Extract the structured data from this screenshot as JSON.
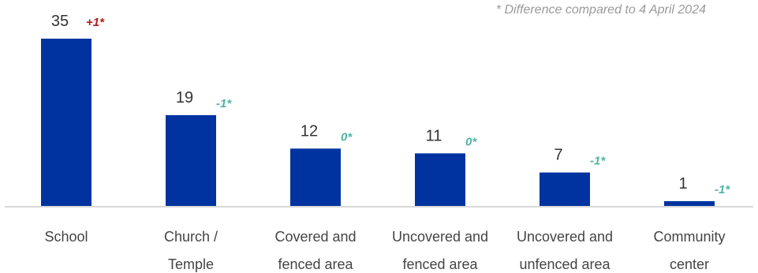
{
  "chart_data": {
    "type": "bar",
    "categories": [
      [
        "School"
      ],
      [
        "Church /",
        "Temple"
      ],
      [
        "Covered and",
        "fenced area"
      ],
      [
        "Uncovered and",
        "fenced area"
      ],
      [
        "Uncovered and",
        "unfenced area"
      ],
      [
        "Community",
        "center"
      ]
    ],
    "values": [
      35,
      19,
      12,
      11,
      7,
      1
    ],
    "differences": [
      "+1*",
      "-1*",
      "0*",
      "0*",
      "-1*",
      "-1*"
    ],
    "annotation": "* Difference compared to 4 April 2024",
    "ylim": [
      0,
      35
    ],
    "grid": false,
    "legend": "none"
  },
  "colors": {
    "bar": "#0033a0",
    "positive": "#b01c1c",
    "neutral": "#4fb3a6",
    "axis": "#cccccc"
  }
}
